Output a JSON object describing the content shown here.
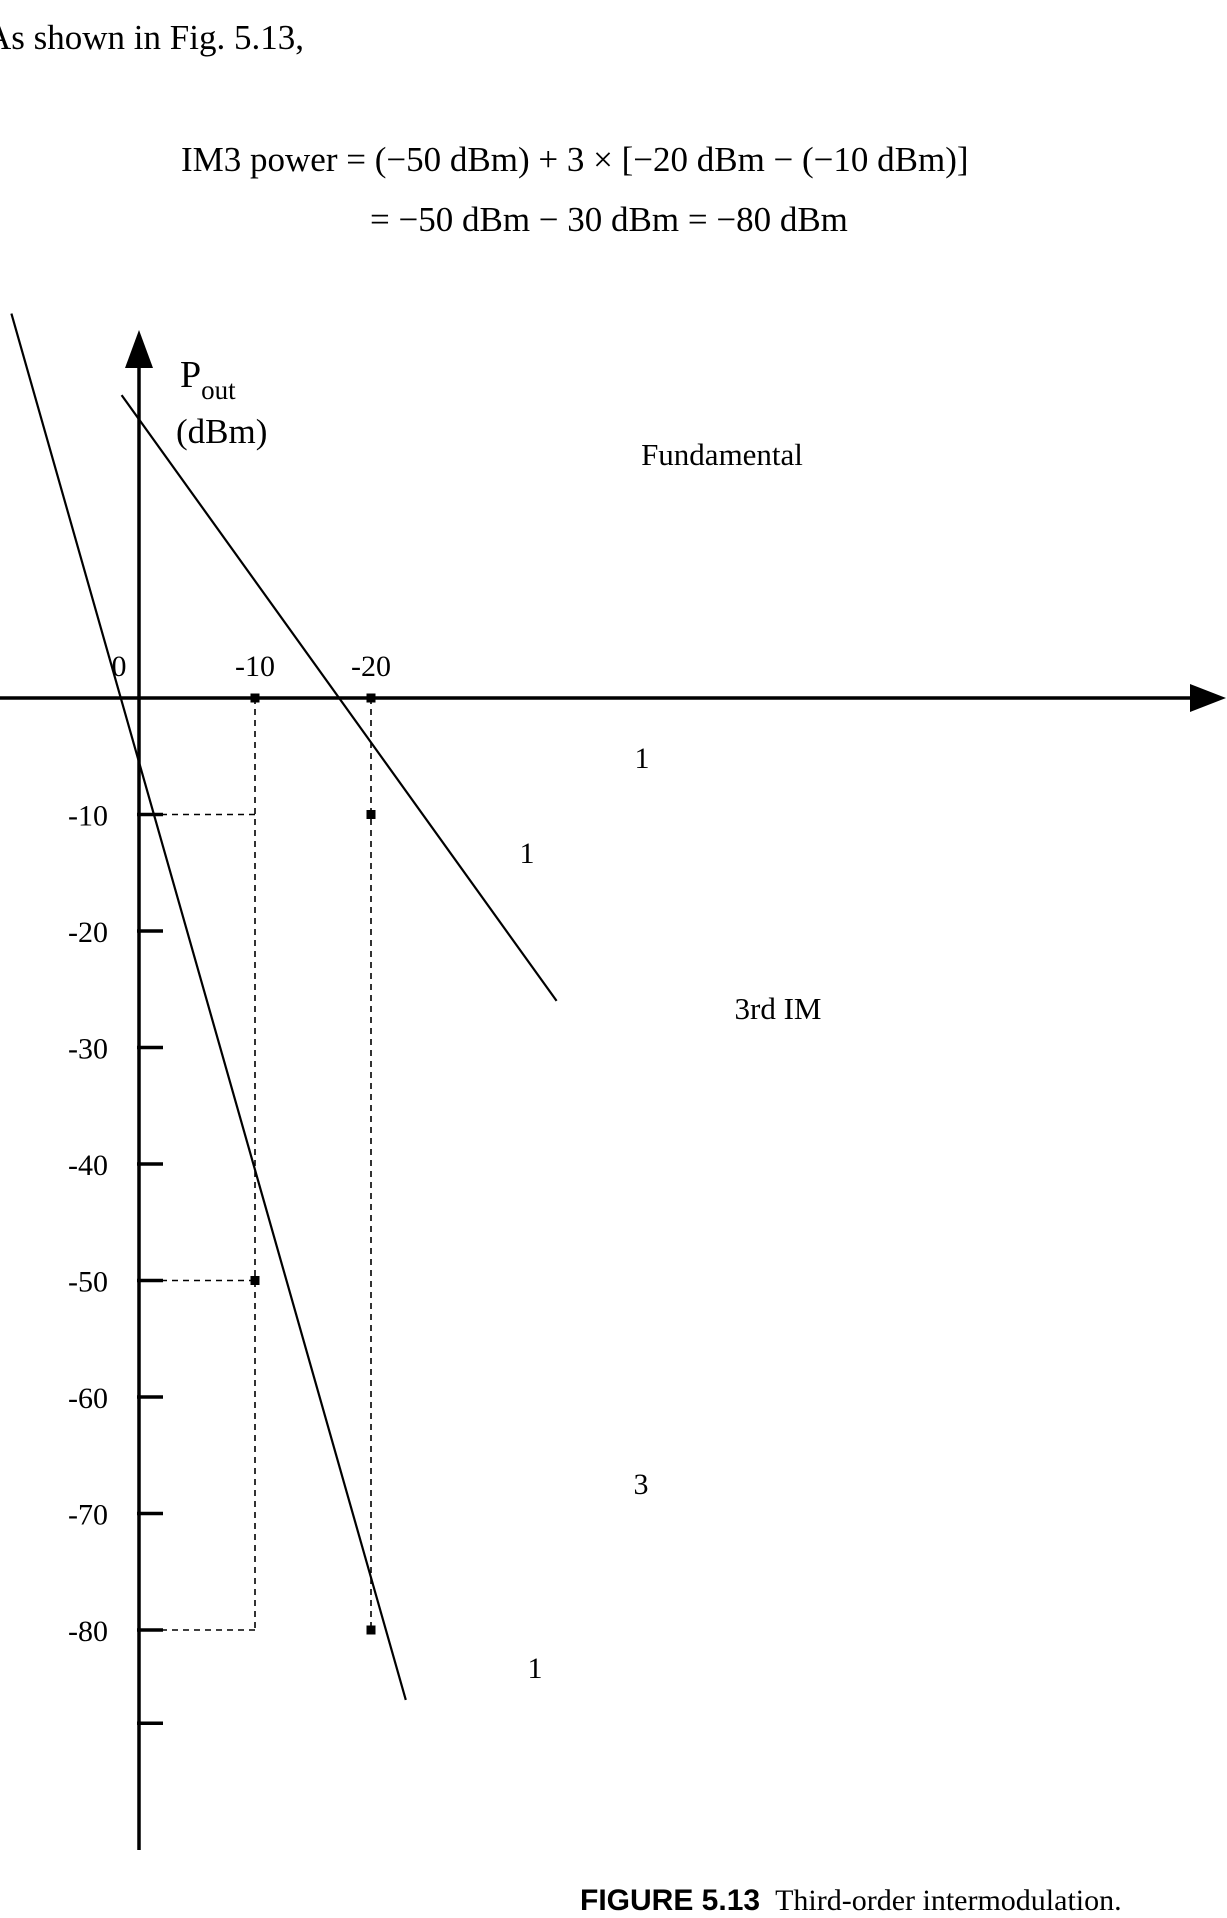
{
  "text": {
    "intro": "As shown in Fig. 5.13,",
    "eq_line1": "IM3 power = (−50 dBm) + 3 × [−20 dBm − (−10 dBm)]",
    "eq_line2": "= −50 dBm − 30 dBm = −80 dBm",
    "caption_label": "FIGURE 5.13",
    "caption_text": "Third-order intermodulation."
  },
  "chart_data": {
    "type": "line",
    "title": "",
    "ylabel_main": "P",
    "ylabel_sub": "out",
    "ylabel_unit": "(dBm)",
    "xlabel": "",
    "xlim": [
      0,
      30
    ],
    "ylim": [
      -96,
      50
    ],
    "grid": false,
    "x_ticks": [
      {
        "value": 0,
        "label": "0"
      },
      {
        "value": -20,
        "label": "-20"
      },
      {
        "value": -10,
        "label": "-10"
      }
    ],
    "y_ticks": [
      {
        "value": -10,
        "label": "-10"
      },
      {
        "value": -20,
        "label": "-20"
      },
      {
        "value": -30,
        "label": "-30"
      },
      {
        "value": -40,
        "label": "-40"
      },
      {
        "value": -50,
        "label": "-50"
      },
      {
        "value": -60,
        "label": "-60"
      },
      {
        "value": -70,
        "label": "-70"
      },
      {
        "value": -80,
        "label": "-80"
      },
      {
        "value": -88,
        "label": ""
      }
    ],
    "series": [
      {
        "name": "Fundamental",
        "slope": 1,
        "x": [
          -36,
          1.5
        ],
        "y": [
          -26,
          26
        ]
      },
      {
        "name": "3rd IM",
        "slope": 3,
        "x": [
          -23,
          11
        ],
        "y": [
          -86,
          33
        ]
      }
    ],
    "marked_points": [
      {
        "x": -20,
        "y": -10
      },
      {
        "x": -10,
        "y": 0
      },
      {
        "x": -20,
        "y": 0
      },
      {
        "x": -10,
        "y": -50
      },
      {
        "x": -20,
        "y": -80
      }
    ],
    "guides": [
      {
        "from": [
          -20,
          0
        ],
        "to": [
          -20,
          -80
        ]
      },
      {
        "from": [
          -10,
          0
        ],
        "to": [
          -10,
          -80
        ]
      },
      {
        "from": [
          0,
          -10
        ],
        "to": [
          -10,
          -10
        ]
      },
      {
        "from": [
          0,
          -50
        ],
        "to": [
          -10,
          -50
        ]
      },
      {
        "from": [
          0,
          -80
        ],
        "to": [
          -10,
          -80
        ]
      }
    ],
    "slope_labels": [
      {
        "text": "1",
        "near": "fundamental-horizontal"
      },
      {
        "text": "1",
        "near": "fundamental-vertical"
      },
      {
        "text": "3",
        "near": "im3-vertical"
      },
      {
        "text": "1",
        "near": "im3-horizontal"
      }
    ]
  }
}
